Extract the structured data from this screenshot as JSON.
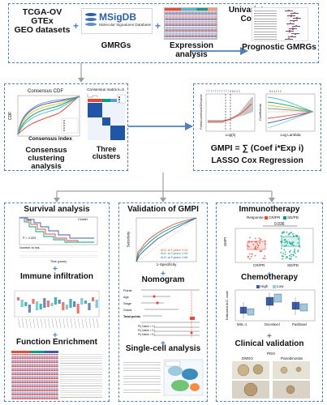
{
  "top": {
    "datasets": [
      "TCGA-OV",
      "GTEx",
      "GEO datasets"
    ],
    "msigdb": {
      "brand": "MSigDB",
      "subtitle": "Molecular Signatures Database"
    },
    "gmrgs_label": "GMRGs",
    "expression_label": "Expression analysis",
    "univariate_label": "Univariate\nCox",
    "prognostic_label": "Prognostic GMRGs"
  },
  "middle": {
    "consensus_label": "Consensus clustering\nanalysis",
    "clusters_label": "Three clusters",
    "cdf_title": "Consensus CDF",
    "cdf_xlabel": "Consensus index",
    "cdf_ylabel": "CDF",
    "matrix_title": "Consensus matrix k=3",
    "gmpi_formula": "GMPI = ∑ (Coef i*Exp i)",
    "lasso_label": "LASSO Cox Regression",
    "lasso_xlabel": "Log(λ)",
    "lasso_xlabel2": "Log Lambda",
    "lasso_ylabel": "Partial Likelihood Deviance",
    "lasso_ylabel2": "Coefficients"
  },
  "bottom": {
    "survival_label": "Survival analysis",
    "immune_label": "Immune infiltration",
    "function_label": "Function Enrichment",
    "validation_label": "Validation of GMPI",
    "nomogram_label": "Nomogram",
    "singlecell_label": "Single-cell analysis",
    "immunotherapy_label": "Immunotherapy",
    "chemotherapy_label": "Chemotherapy",
    "clinical_label": "Clinical validation",
    "survival_pvalue": "P = 0.003",
    "cluster_legend": "Cluster",
    "risk_table_title": "Number at risk",
    "survival_xlabel": "Time (years)",
    "roc_ylabel": "Sensitivity",
    "roc_xlabel": "1-Specificity",
    "roc_auc": [
      "AUC at 1 years: 0.63",
      "AUC at 3 years: 0.65",
      "AUC at 5 years: 0.66"
    ],
    "nomo_rows": [
      "Points",
      "Age",
      "Stage",
      "Grade",
      "Total points"
    ],
    "nomo_os": [
      "Pr( futime > 1 )",
      "Pr( futime > 3 )",
      "Pr( futime > 5 )"
    ],
    "immuno_legend": "Response",
    "immuno_cats": [
      "CR/PR",
      "SD/PD"
    ],
    "immuno_p": "0.036",
    "immuno_ylabel": "GMPI",
    "chemo_legend": [
      "High",
      "Low"
    ],
    "chemo_drugs": [
      "MSL-1",
      "Docetaxel",
      "Paclitaxel"
    ],
    "chemo_ylabel": "Estimated AUC value",
    "pdo_label": "PDO",
    "pdo_cols": [
      "DMSO",
      "Panobinostat"
    ]
  },
  "colors": {
    "dash": "#4f81bd",
    "arrow": "#4f81bd",
    "connector": "#9aa0a6",
    "red": "#e64b35",
    "blue": "#3c5fa8"
  }
}
